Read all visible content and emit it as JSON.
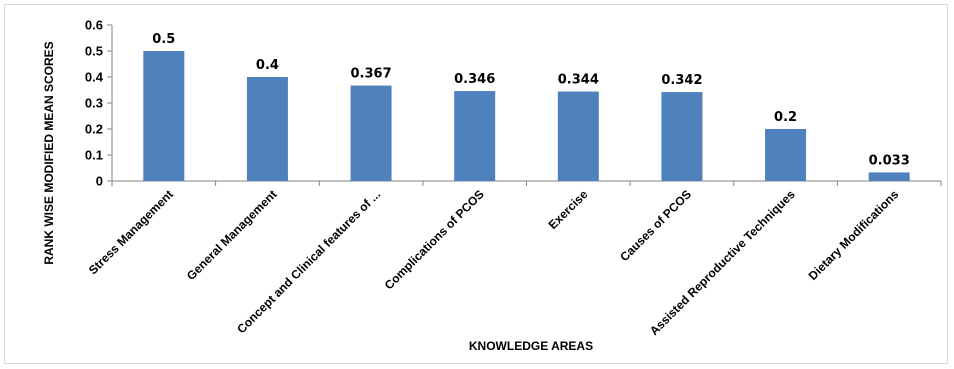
{
  "chart_data": {
    "type": "bar",
    "title": "",
    "xlabel": "KNOWLEDGE AREAS",
    "ylabel": "RANK WISE MODIFIED MEAN SCORES",
    "categories": [
      "Stress Management",
      "General Management",
      "Concept and Clinical features of ...",
      "Complications of PCOS",
      "Exercise",
      "Causes of PCOS",
      "Assisted Reproductive Techniques",
      "Dietary Modifications"
    ],
    "values": [
      0.5,
      0.4,
      0.367,
      0.346,
      0.344,
      0.342,
      0.2,
      0.033
    ],
    "data_labels": [
      "0.5",
      "0.4",
      "0.367",
      "0.346",
      "0.344",
      "0.342",
      "0.2",
      "0.033"
    ],
    "yticks": [
      "0",
      "0.1",
      "0.2",
      "0.3",
      "0.4",
      "0.5",
      "0.6"
    ],
    "ylim": [
      0,
      0.6
    ],
    "grid": false,
    "legend": "none",
    "bar_color": "#4f81bd",
    "axis_color": "#868686"
  }
}
